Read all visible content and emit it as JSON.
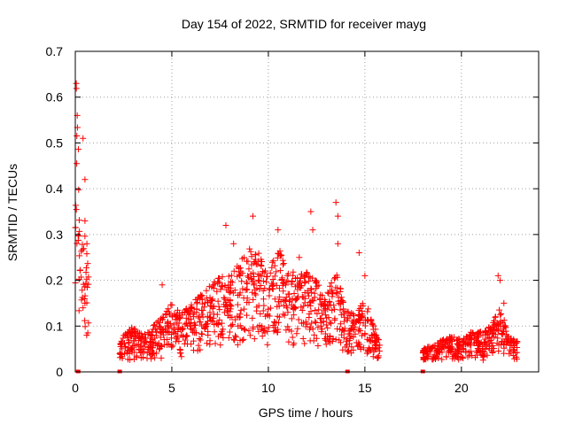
{
  "chart_data": {
    "type": "scatter",
    "title": "Day 154 of 2022, SRMTID for receiver mayg",
    "xlabel": "GPS time / hours",
    "ylabel": "SRMTID / TECUs",
    "xlim": [
      0,
      24
    ],
    "ylim": [
      0,
      0.7
    ],
    "x_ticks": [
      0,
      5,
      10,
      15,
      20
    ],
    "y_ticks": [
      0,
      0.1,
      0.2,
      0.3,
      0.4,
      0.5,
      0.6,
      0.7
    ],
    "grid": true,
    "marker": "+",
    "color": "#ff0000",
    "series": [
      {
        "name": "SRMTID",
        "envelope": [
          {
            "x": 0.0,
            "y": 0.36
          },
          {
            "x": 0.05,
            "y": 0.63
          },
          {
            "x": 0.15,
            "y": 0.5
          },
          {
            "x": 0.3,
            "y": 0.35
          },
          {
            "x": 0.5,
            "y": 0.3
          },
          {
            "x": 0.7,
            "y": 0.22
          },
          {
            "x": 2.3,
            "y": 0.06
          },
          {
            "x": 2.5,
            "y": 0.08
          },
          {
            "x": 3.0,
            "y": 0.1
          },
          {
            "x": 3.5,
            "y": 0.08
          },
          {
            "x": 4.0,
            "y": 0.1
          },
          {
            "x": 4.5,
            "y": 0.12
          },
          {
            "x": 5.0,
            "y": 0.15
          },
          {
            "x": 5.5,
            "y": 0.13
          },
          {
            "x": 6.0,
            "y": 0.15
          },
          {
            "x": 6.5,
            "y": 0.17
          },
          {
            "x": 7.0,
            "y": 0.19
          },
          {
            "x": 7.5,
            "y": 0.22
          },
          {
            "x": 8.0,
            "y": 0.21
          },
          {
            "x": 8.5,
            "y": 0.24
          },
          {
            "x": 9.0,
            "y": 0.27
          },
          {
            "x": 9.5,
            "y": 0.26
          },
          {
            "x": 10.0,
            "y": 0.22
          },
          {
            "x": 10.5,
            "y": 0.28
          },
          {
            "x": 11.0,
            "y": 0.23
          },
          {
            "x": 11.5,
            "y": 0.21
          },
          {
            "x": 12.0,
            "y": 0.22
          },
          {
            "x": 12.5,
            "y": 0.2
          },
          {
            "x": 13.0,
            "y": 0.17
          },
          {
            "x": 13.5,
            "y": 0.22
          },
          {
            "x": 14.0,
            "y": 0.14
          },
          {
            "x": 14.5,
            "y": 0.13
          },
          {
            "x": 15.0,
            "y": 0.16
          },
          {
            "x": 15.5,
            "y": 0.1
          },
          {
            "x": 15.8,
            "y": 0.06
          },
          {
            "x": 18.0,
            "y": 0.05
          },
          {
            "x": 18.5,
            "y": 0.06
          },
          {
            "x": 19.0,
            "y": 0.07
          },
          {
            "x": 19.5,
            "y": 0.08
          },
          {
            "x": 20.0,
            "y": 0.07
          },
          {
            "x": 20.5,
            "y": 0.09
          },
          {
            "x": 21.0,
            "y": 0.09
          },
          {
            "x": 21.5,
            "y": 0.1
          },
          {
            "x": 22.0,
            "y": 0.14
          },
          {
            "x": 22.5,
            "y": 0.08
          },
          {
            "x": 22.9,
            "y": 0.07
          }
        ],
        "spikes": [
          {
            "x": 0.05,
            "y": 0.63
          },
          {
            "x": 0.1,
            "y": 0.56
          },
          {
            "x": 0.4,
            "y": 0.51
          },
          {
            "x": 0.5,
            "y": 0.42
          },
          {
            "x": 0.5,
            "y": 0.33
          },
          {
            "x": 0.6,
            "y": 0.28
          },
          {
            "x": 4.5,
            "y": 0.19
          },
          {
            "x": 7.8,
            "y": 0.32
          },
          {
            "x": 8.2,
            "y": 0.28
          },
          {
            "x": 9.2,
            "y": 0.34
          },
          {
            "x": 10.5,
            "y": 0.31
          },
          {
            "x": 11.6,
            "y": 0.25
          },
          {
            "x": 12.2,
            "y": 0.35
          },
          {
            "x": 12.3,
            "y": 0.31
          },
          {
            "x": 13.5,
            "y": 0.37
          },
          {
            "x": 13.6,
            "y": 0.34
          },
          {
            "x": 13.6,
            "y": 0.28
          },
          {
            "x": 14.7,
            "y": 0.26
          },
          {
            "x": 15.0,
            "y": 0.21
          },
          {
            "x": 21.9,
            "y": 0.21
          },
          {
            "x": 22.0,
            "y": 0.2
          },
          {
            "x": 22.2,
            "y": 0.15
          }
        ],
        "zero_points": [
          {
            "x": 0.15,
            "y": 0.0
          },
          {
            "x": 2.3,
            "y": 0.0
          },
          {
            "x": 14.1,
            "y": 0.0
          },
          {
            "x": 18.0,
            "y": 0.0
          }
        ]
      }
    ]
  }
}
